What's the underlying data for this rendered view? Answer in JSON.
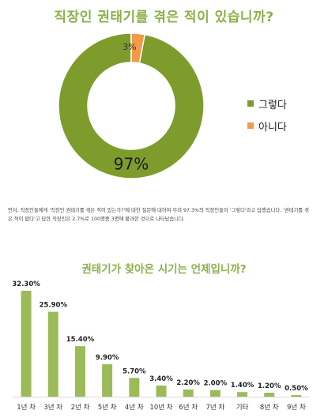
{
  "charts_section": {
    "title1": "직장인 권태기를 겪은 적이 있습니까?",
    "description": "먼저, 직장인들에게 '직장인 권태기를 겪은 적이 있는가?'에 대한 질문에 대하여 무려 97.3%의 직장인들이 '그렇다'라고 답했습니다. '권태기를 겪은 적이 없다'고 답한 직장인은 2.7%로 100명중 3명에 불과한 것으로 나타났습니다.",
    "title2": "권태기가 찾아온 시기는 언제입니까?"
  },
  "chart_data": [
    {
      "type": "pie",
      "variant": "donut",
      "title": "직장인 권태기를 겪은 적이 있습니까?",
      "legend_position": "right",
      "slices": [
        {
          "label": "그렇다",
          "value": 97,
          "value_label": "97%",
          "color": "#7e9c2c"
        },
        {
          "label": "아니다",
          "value": 3,
          "value_label": "3%",
          "color": "#f2994a"
        }
      ]
    },
    {
      "type": "bar",
      "title": "권태기가 찾아온 시기는 언제입니까?",
      "categories": [
        "1년 차",
        "3년 차",
        "2년 차",
        "5년 차",
        "4년 차",
        "10년 차",
        "6년 차",
        "7년 차",
        "기타",
        "8년 차",
        "9년 차"
      ],
      "values": [
        32.3,
        25.9,
        15.4,
        9.9,
        5.7,
        3.4,
        2.2,
        2.0,
        1.4,
        1.2,
        0.5
      ],
      "value_labels": [
        "32.30%",
        "25.90%",
        "15.40%",
        "9.90%",
        "5.70%",
        "3.40%",
        "2.20%",
        "2.00%",
        "1.40%",
        "1.20%",
        "0.50%"
      ],
      "color": "#9bbb59",
      "ylim": [
        0,
        32.3
      ],
      "grid": false
    }
  ]
}
